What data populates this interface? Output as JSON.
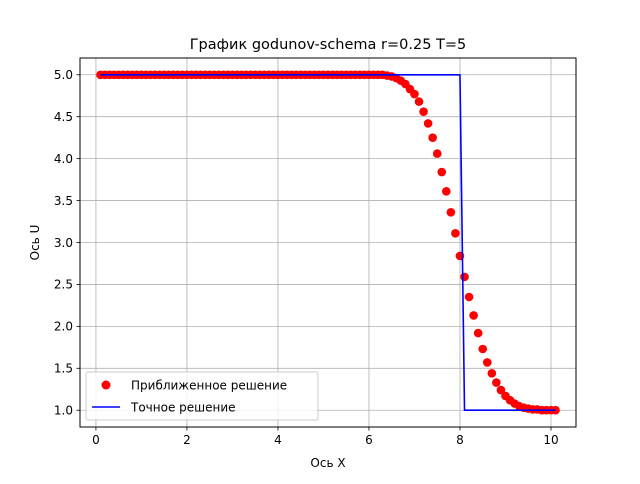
{
  "chart_data": {
    "type": "scatter",
    "title": "График godunov-schema r=0.25 T=5",
    "xlabel": "Ось X",
    "ylabel": "Ось U",
    "xlim": [
      -0.35,
      10.55
    ],
    "ylim": [
      0.8,
      5.2
    ],
    "xticks": [
      "0",
      "2",
      "4",
      "6",
      "8",
      "10"
    ],
    "yticks": [
      "1.0",
      "1.5",
      "2.0",
      "2.5",
      "3.0",
      "3.5",
      "4.0",
      "4.5",
      "5.0"
    ],
    "grid": true,
    "legend_position": "bottom-left",
    "series": [
      {
        "name": "Приближенное решение",
        "kind": "scatter",
        "color": "#ff0000",
        "x": [
          0.1,
          0.2,
          0.3,
          0.4,
          0.5,
          0.6,
          0.7,
          0.8,
          0.9,
          1.0,
          1.1,
          1.2,
          1.3,
          1.4,
          1.5,
          1.6,
          1.7,
          1.8,
          1.9,
          2.0,
          2.1,
          2.2,
          2.3,
          2.4,
          2.5,
          2.6,
          2.7,
          2.8,
          2.9,
          3.0,
          3.1,
          3.2,
          3.3,
          3.4,
          3.5,
          3.6,
          3.7,
          3.8,
          3.9,
          4.0,
          4.1,
          4.2,
          4.3,
          4.4,
          4.5,
          4.6,
          4.7,
          4.8,
          4.9,
          5.0,
          5.1,
          5.2,
          5.3,
          5.4,
          5.5,
          5.6,
          5.7,
          5.8,
          5.9,
          6.0,
          6.1,
          6.2,
          6.3,
          6.4,
          6.5,
          6.6,
          6.7,
          6.8,
          6.9,
          7.0,
          7.1,
          7.2,
          7.3,
          7.4,
          7.5,
          7.6,
          7.7,
          7.8,
          7.9,
          8.0,
          8.1,
          8.2,
          8.3,
          8.4,
          8.5,
          8.6,
          8.7,
          8.8,
          8.9,
          9.0,
          9.1,
          9.2,
          9.3,
          9.4,
          9.5,
          9.6,
          9.7,
          9.8,
          9.9,
          10.0,
          10.1
        ],
        "y": [
          5.0,
          5.0,
          5.0,
          5.0,
          5.0,
          5.0,
          5.0,
          5.0,
          5.0,
          5.0,
          5.0,
          5.0,
          5.0,
          5.0,
          5.0,
          5.0,
          5.0,
          5.0,
          5.0,
          5.0,
          5.0,
          5.0,
          5.0,
          5.0,
          5.0,
          5.0,
          5.0,
          5.0,
          5.0,
          5.0,
          5.0,
          5.0,
          5.0,
          5.0,
          5.0,
          5.0,
          5.0,
          5.0,
          5.0,
          5.0,
          5.0,
          5.0,
          5.0,
          5.0,
          5.0,
          5.0,
          5.0,
          5.0,
          5.0,
          5.0,
          5.0,
          5.0,
          5.0,
          5.0,
          5.0,
          5.0,
          5.0,
          5.0,
          5.0,
          5.0,
          5.0,
          5.0,
          5.0,
          4.99,
          4.98,
          4.96,
          4.93,
          4.89,
          4.83,
          4.77,
          4.68,
          4.56,
          4.42,
          4.25,
          4.06,
          3.84,
          3.61,
          3.36,
          3.11,
          2.84,
          2.59,
          2.35,
          2.13,
          1.92,
          1.73,
          1.57,
          1.44,
          1.33,
          1.24,
          1.17,
          1.12,
          1.08,
          1.05,
          1.03,
          1.02,
          1.01,
          1.01,
          1.0,
          1.0,
          1.0,
          1.0
        ]
      },
      {
        "name": "Точное решение",
        "kind": "line",
        "color": "#0000ff",
        "x": [
          0.1,
          8.0,
          8.1,
          10.1
        ],
        "y": [
          5.0,
          5.0,
          1.0,
          1.0
        ]
      }
    ]
  }
}
